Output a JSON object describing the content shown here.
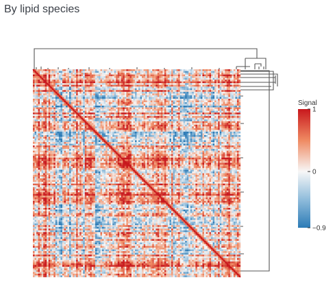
{
  "page": {
    "title": "By lipid species"
  },
  "chart_data": {
    "type": "heatmap",
    "subtype": "clustered correlation matrix with dendrograms",
    "title": "",
    "xlabel": "",
    "ylabel": "",
    "legend": {
      "title": "Signal",
      "placement": "right",
      "range": [
        -0.9,
        1
      ],
      "ticks": [
        {
          "value": 1,
          "label": "1"
        },
        {
          "value": 0,
          "label": "0"
        },
        {
          "value": -0.9,
          "label": "−0.9"
        }
      ],
      "colorscale": [
        {
          "value": -0.9,
          "color": "#2c7bb6"
        },
        {
          "value": -0.45,
          "color": "#8fbcdb"
        },
        {
          "value": 0,
          "color": "#f7f7f7"
        },
        {
          "value": 0.5,
          "color": "#ef8a62"
        },
        {
          "value": 1,
          "color": "#c8181d"
        }
      ]
    },
    "n_species": 120,
    "diagonal_value": 1,
    "grid": false,
    "dendrograms": [
      "top",
      "right"
    ]
  }
}
